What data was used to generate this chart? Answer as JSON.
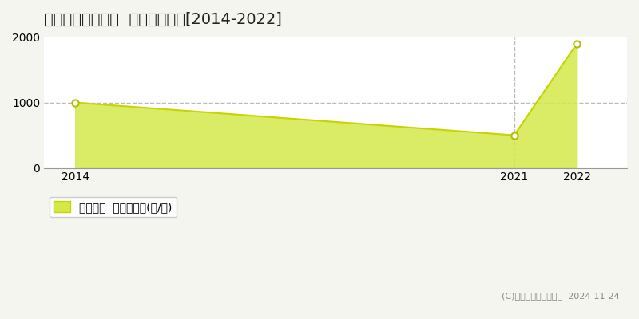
{
  "title": "広尾郡大樹町拓進  林地価格推移[2014-2022]",
  "years": [
    2014,
    2021,
    2022
  ],
  "values": [
    1000,
    500,
    1900
  ],
  "line_color": "#c8d400",
  "fill_color": "#d4e84a",
  "fill_alpha": 0.85,
  "marker_fill_color": "#ffffff",
  "marker_edge_color": "#b0c000",
  "xlim": [
    2013.5,
    2022.8
  ],
  "ylim": [
    0,
    2000
  ],
  "yticks": [
    0,
    1000,
    2000
  ],
  "xticks": [
    2014,
    2021,
    2022
  ],
  "vline_x": 2021,
  "vline_color": "#bbbbbb",
  "vline_style": "--",
  "hline_y": 1000,
  "hline_color": "#bbbbbb",
  "hline_style": "--",
  "legend_label": "林地価格  平均坤単価(円/坤)",
  "copyright_text": "(C)土地価格ドットコム  2024-11-24",
  "bg_color": "#f5f5f0",
  "plot_bg_color": "#ffffff",
  "title_fontsize": 14,
  "axis_fontsize": 10,
  "legend_fontsize": 10,
  "copyright_fontsize": 8
}
